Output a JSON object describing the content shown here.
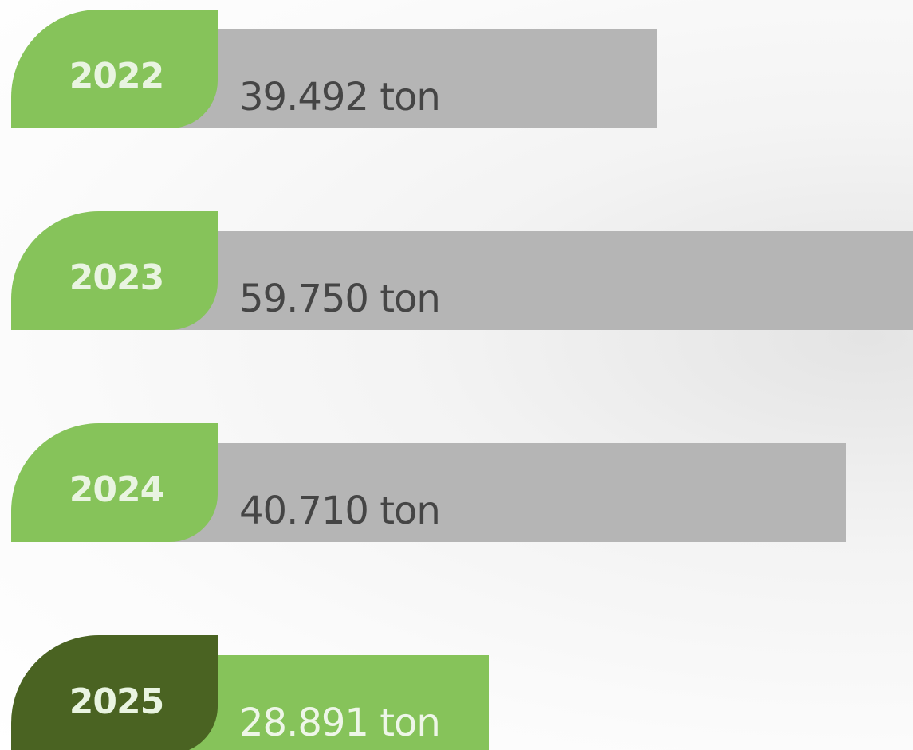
{
  "items": [
    {
      "year": "2022",
      "value": "39.492 ton"
    },
    {
      "year": "2023",
      "value": "59.750 ton"
    },
    {
      "year": "2024",
      "value": "40.710 ton"
    },
    {
      "year": "2025",
      "value": "28.891 ton"
    }
  ]
}
